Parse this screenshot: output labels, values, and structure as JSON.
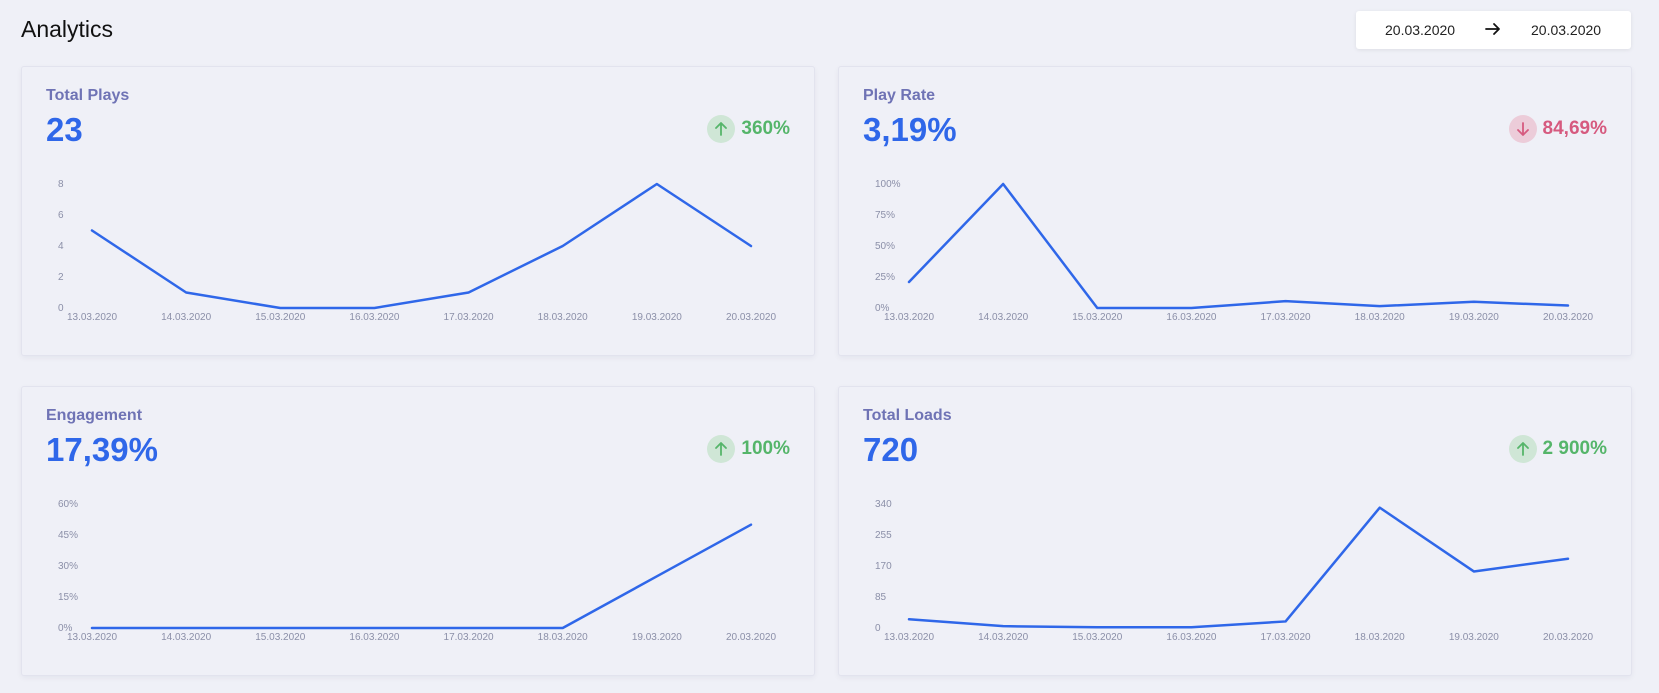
{
  "page": {
    "title": "Analytics"
  },
  "date_range": {
    "start": "20.03.2020",
    "end": "20.03.2020",
    "separator_icon": "arrow-right-icon"
  },
  "colors": {
    "line": "#2f67e9",
    "value": "#2f67e9",
    "title": "#6f73b5",
    "up": "#55b56a",
    "down": "#d65a7f"
  },
  "cards": [
    {
      "title": "Total Plays",
      "value": "23",
      "change": {
        "direction": "up",
        "icon": "arrow-up-icon",
        "label": "360%"
      }
    },
    {
      "title": "Play Rate",
      "value": "3,19%",
      "change": {
        "direction": "down",
        "icon": "arrow-down-icon",
        "label": "84,69%"
      }
    },
    {
      "title": "Engagement",
      "value": "17,39%",
      "change": {
        "direction": "up",
        "icon": "arrow-up-icon",
        "label": "100%"
      }
    },
    {
      "title": "Total Loads",
      "value": "720",
      "change": {
        "direction": "up",
        "icon": "arrow-up-icon",
        "label": "2 900%"
      }
    }
  ],
  "chart_data": [
    {
      "type": "line",
      "categories": [
        "13.03.2020",
        "14.03.2020",
        "15.03.2020",
        "16.03.2020",
        "17.03.2020",
        "18.03.2020",
        "19.03.2020",
        "20.03.2020"
      ],
      "series": [
        {
          "values": [
            5,
            1,
            0,
            0,
            1,
            4,
            8,
            4
          ]
        }
      ],
      "yticks": [
        "0",
        "2",
        "4",
        "6",
        "8"
      ],
      "ylim": [
        0,
        8
      ],
      "grid": false
    },
    {
      "type": "line",
      "categories": [
        "13.03.2020",
        "14.03.2020",
        "15.03.2020",
        "16.03.2020",
        "17.03.2020",
        "18.03.2020",
        "19.03.2020",
        "20.03.2020"
      ],
      "series": [
        {
          "values": [
            21,
            100,
            0,
            0,
            5.5,
            1.5,
            5,
            2
          ]
        }
      ],
      "yticks": [
        "0%",
        "25%",
        "50%",
        "75%",
        "100%"
      ],
      "ylim": [
        0,
        100
      ],
      "grid": false
    },
    {
      "type": "line",
      "categories": [
        "13.03.2020",
        "14.03.2020",
        "15.03.2020",
        "16.03.2020",
        "17.03.2020",
        "18.03.2020",
        "19.03.2020",
        "20.03.2020"
      ],
      "series": [
        {
          "values": [
            0,
            0,
            0,
            0,
            0,
            0,
            25,
            50
          ]
        }
      ],
      "yticks": [
        "0%",
        "15%",
        "30%",
        "45%",
        "60%"
      ],
      "ylim": [
        0,
        60
      ],
      "grid": false
    },
    {
      "type": "line",
      "categories": [
        "13.03.2020",
        "14.03.2020",
        "15.03.2020",
        "16.03.2020",
        "17.03.2020",
        "18.03.2020",
        "19.03.2020",
        "20.03.2020"
      ],
      "series": [
        {
          "values": [
            24,
            5,
            2,
            2,
            18,
            330,
            155,
            190
          ]
        }
      ],
      "yticks": [
        "0",
        "85",
        "170",
        "255",
        "340"
      ],
      "ylim": [
        0,
        340
      ],
      "grid": false
    }
  ]
}
